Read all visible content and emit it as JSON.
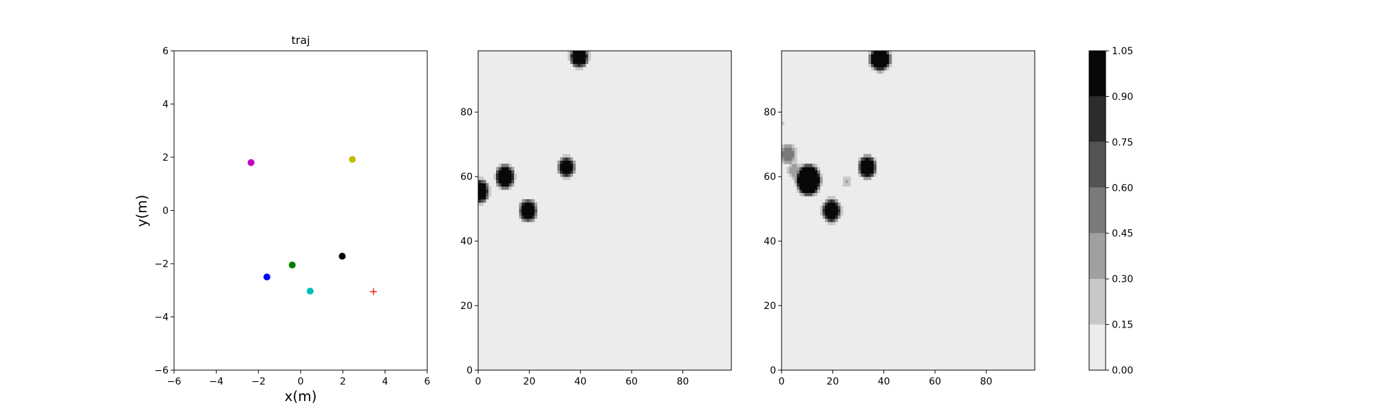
{
  "chart_data": [
    {
      "type": "scatter",
      "title": "traj",
      "xlabel": "x(m)",
      "ylabel": "y(m)",
      "xlim": [
        -6,
        6
      ],
      "ylim": [
        -6,
        6
      ],
      "xticks": [
        "−6",
        "−4",
        "−2",
        "0",
        "2",
        "4",
        "6"
      ],
      "yticks": [
        "−6",
        "−4",
        "−2",
        "0",
        "2",
        "4",
        "6"
      ],
      "grid": false,
      "points": [
        {
          "x": -2.35,
          "y": 1.8,
          "color": "#bf00bf",
          "marker": "circle"
        },
        {
          "x": 2.45,
          "y": 1.92,
          "color": "#bfbf00",
          "marker": "circle"
        },
        {
          "x": -0.4,
          "y": -2.05,
          "color": "#008000",
          "marker": "circle"
        },
        {
          "x": -1.6,
          "y": -2.5,
          "color": "#0000ff",
          "marker": "circle"
        },
        {
          "x": 1.97,
          "y": -1.72,
          "color": "#000000",
          "marker": "circle"
        },
        {
          "x": 0.45,
          "y": -3.03,
          "color": "#00bfbf",
          "marker": "circle"
        },
        {
          "x": 3.45,
          "y": -3.05,
          "color": "#ff0000",
          "marker": "plus"
        }
      ]
    },
    {
      "type": "heatmap",
      "xlim": [
        0,
        99
      ],
      "ylim": [
        0,
        99
      ],
      "xticks": [
        "0",
        "20",
        "40",
        "60",
        "80"
      ],
      "yticks": [
        "0",
        "20",
        "40",
        "60",
        "80"
      ],
      "background_value": 0,
      "blobs": [
        {
          "x": 39.5,
          "y": 97.5,
          "r": 3.6,
          "value": 1.0
        },
        {
          "x": 10.5,
          "y": 60,
          "r": 3.6,
          "value": 1.0
        },
        {
          "x": 0.5,
          "y": 55.5,
          "r": 3.6,
          "value": 1.0
        },
        {
          "x": 19.5,
          "y": 49.5,
          "r": 3.3,
          "value": 1.0
        },
        {
          "x": 34.5,
          "y": 63,
          "r": 3.1,
          "value": 1.0
        }
      ]
    },
    {
      "type": "heatmap",
      "xlim": [
        0,
        99
      ],
      "ylim": [
        0,
        99
      ],
      "xticks": [
        "0",
        "20",
        "40",
        "60",
        "80"
      ],
      "yticks": [
        "0",
        "20",
        "40",
        "60",
        "80"
      ],
      "background_value": 0,
      "blobs": [
        {
          "x": 38.5,
          "y": 97,
          "r": 4.2,
          "value": 1.0
        },
        {
          "x": 10.5,
          "y": 59,
          "r": 4.8,
          "value": 1.0
        },
        {
          "x": 19.5,
          "y": 49.5,
          "r": 3.5,
          "value": 1.0
        },
        {
          "x": 33.5,
          "y": 63,
          "r": 3.4,
          "value": 1.0
        },
        {
          "x": 2.5,
          "y": 67,
          "r": 3.0,
          "value": 0.5
        },
        {
          "x": 5,
          "y": 62,
          "r": 2.5,
          "value": 0.35
        },
        {
          "x": 25.5,
          "y": 58.5,
          "r": 1.5,
          "value": 0.35
        },
        {
          "x": 0.3,
          "y": 76.5,
          "r": 1.0,
          "value": 0.2
        }
      ]
    }
  ],
  "colorbar": {
    "levels": [
      0.0,
      0.15,
      0.3,
      0.45,
      0.6,
      0.75,
      0.9,
      1.05
    ],
    "tick_labels": [
      "0.00",
      "0.15",
      "0.30",
      "0.45",
      "0.60",
      "0.75",
      "0.90",
      "1.05"
    ],
    "colors": [
      "#ececec",
      "#c8c8c8",
      "#a0a0a0",
      "#7a7a7a",
      "#545454",
      "#2c2c2c",
      "#080808"
    ]
  }
}
